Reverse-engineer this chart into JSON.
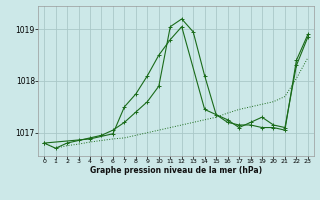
{
  "title": "Graphe pression niveau de la mer (hPa)",
  "background_color": "#cce8e8",
  "grid_color": "#aac8c8",
  "line_color": "#1a6b1a",
  "xlim": [
    -0.5,
    23.5
  ],
  "ylim": [
    1016.55,
    1019.45
  ],
  "yticks": [
    1017,
    1018,
    1019
  ],
  "xtick_labels": [
    "0",
    "1",
    "2",
    "3",
    "4",
    "5",
    "6",
    "7",
    "8",
    "9",
    "10",
    "11",
    "12",
    "13",
    "14",
    "15",
    "16",
    "17",
    "18",
    "19",
    "20",
    "21",
    "22",
    "23"
  ],
  "series1_x": [
    0,
    1,
    2,
    3,
    4,
    5,
    6,
    7,
    8,
    9,
    10,
    11,
    12,
    13,
    14,
    15,
    16,
    17,
    18,
    19,
    20,
    21,
    22,
    23
  ],
  "series1_y": [
    1016.8,
    1016.7,
    1016.8,
    1016.85,
    1016.9,
    1016.95,
    1017.05,
    1017.2,
    1017.4,
    1017.6,
    1017.9,
    1019.05,
    1019.2,
    1018.95,
    1018.1,
    1017.35,
    1017.2,
    1017.15,
    1017.15,
    1017.1,
    1017.1,
    1017.05,
    1018.4,
    1018.9
  ],
  "series2_x": [
    0,
    1,
    2,
    3,
    4,
    5,
    6,
    7,
    8,
    9,
    10,
    11,
    12,
    13,
    14,
    15,
    16,
    17,
    18,
    19,
    20,
    21,
    22,
    23
  ],
  "series2_y": [
    1016.8,
    1016.7,
    1016.75,
    1016.78,
    1016.82,
    1016.85,
    1016.88,
    1016.9,
    1016.95,
    1017.0,
    1017.05,
    1017.1,
    1017.15,
    1017.2,
    1017.25,
    1017.3,
    1017.38,
    1017.45,
    1017.5,
    1017.55,
    1017.6,
    1017.7,
    1018.05,
    1018.45
  ],
  "series3_x": [
    0,
    4,
    6,
    7,
    8,
    9,
    10,
    11,
    12,
    14,
    16,
    17,
    18,
    19,
    20,
    21,
    22,
    23
  ],
  "series3_y": [
    1016.8,
    1016.88,
    1016.98,
    1017.5,
    1017.75,
    1018.1,
    1018.5,
    1018.8,
    1019.05,
    1017.45,
    1017.25,
    1017.1,
    1017.2,
    1017.3,
    1017.15,
    1017.1,
    1018.3,
    1018.85
  ]
}
